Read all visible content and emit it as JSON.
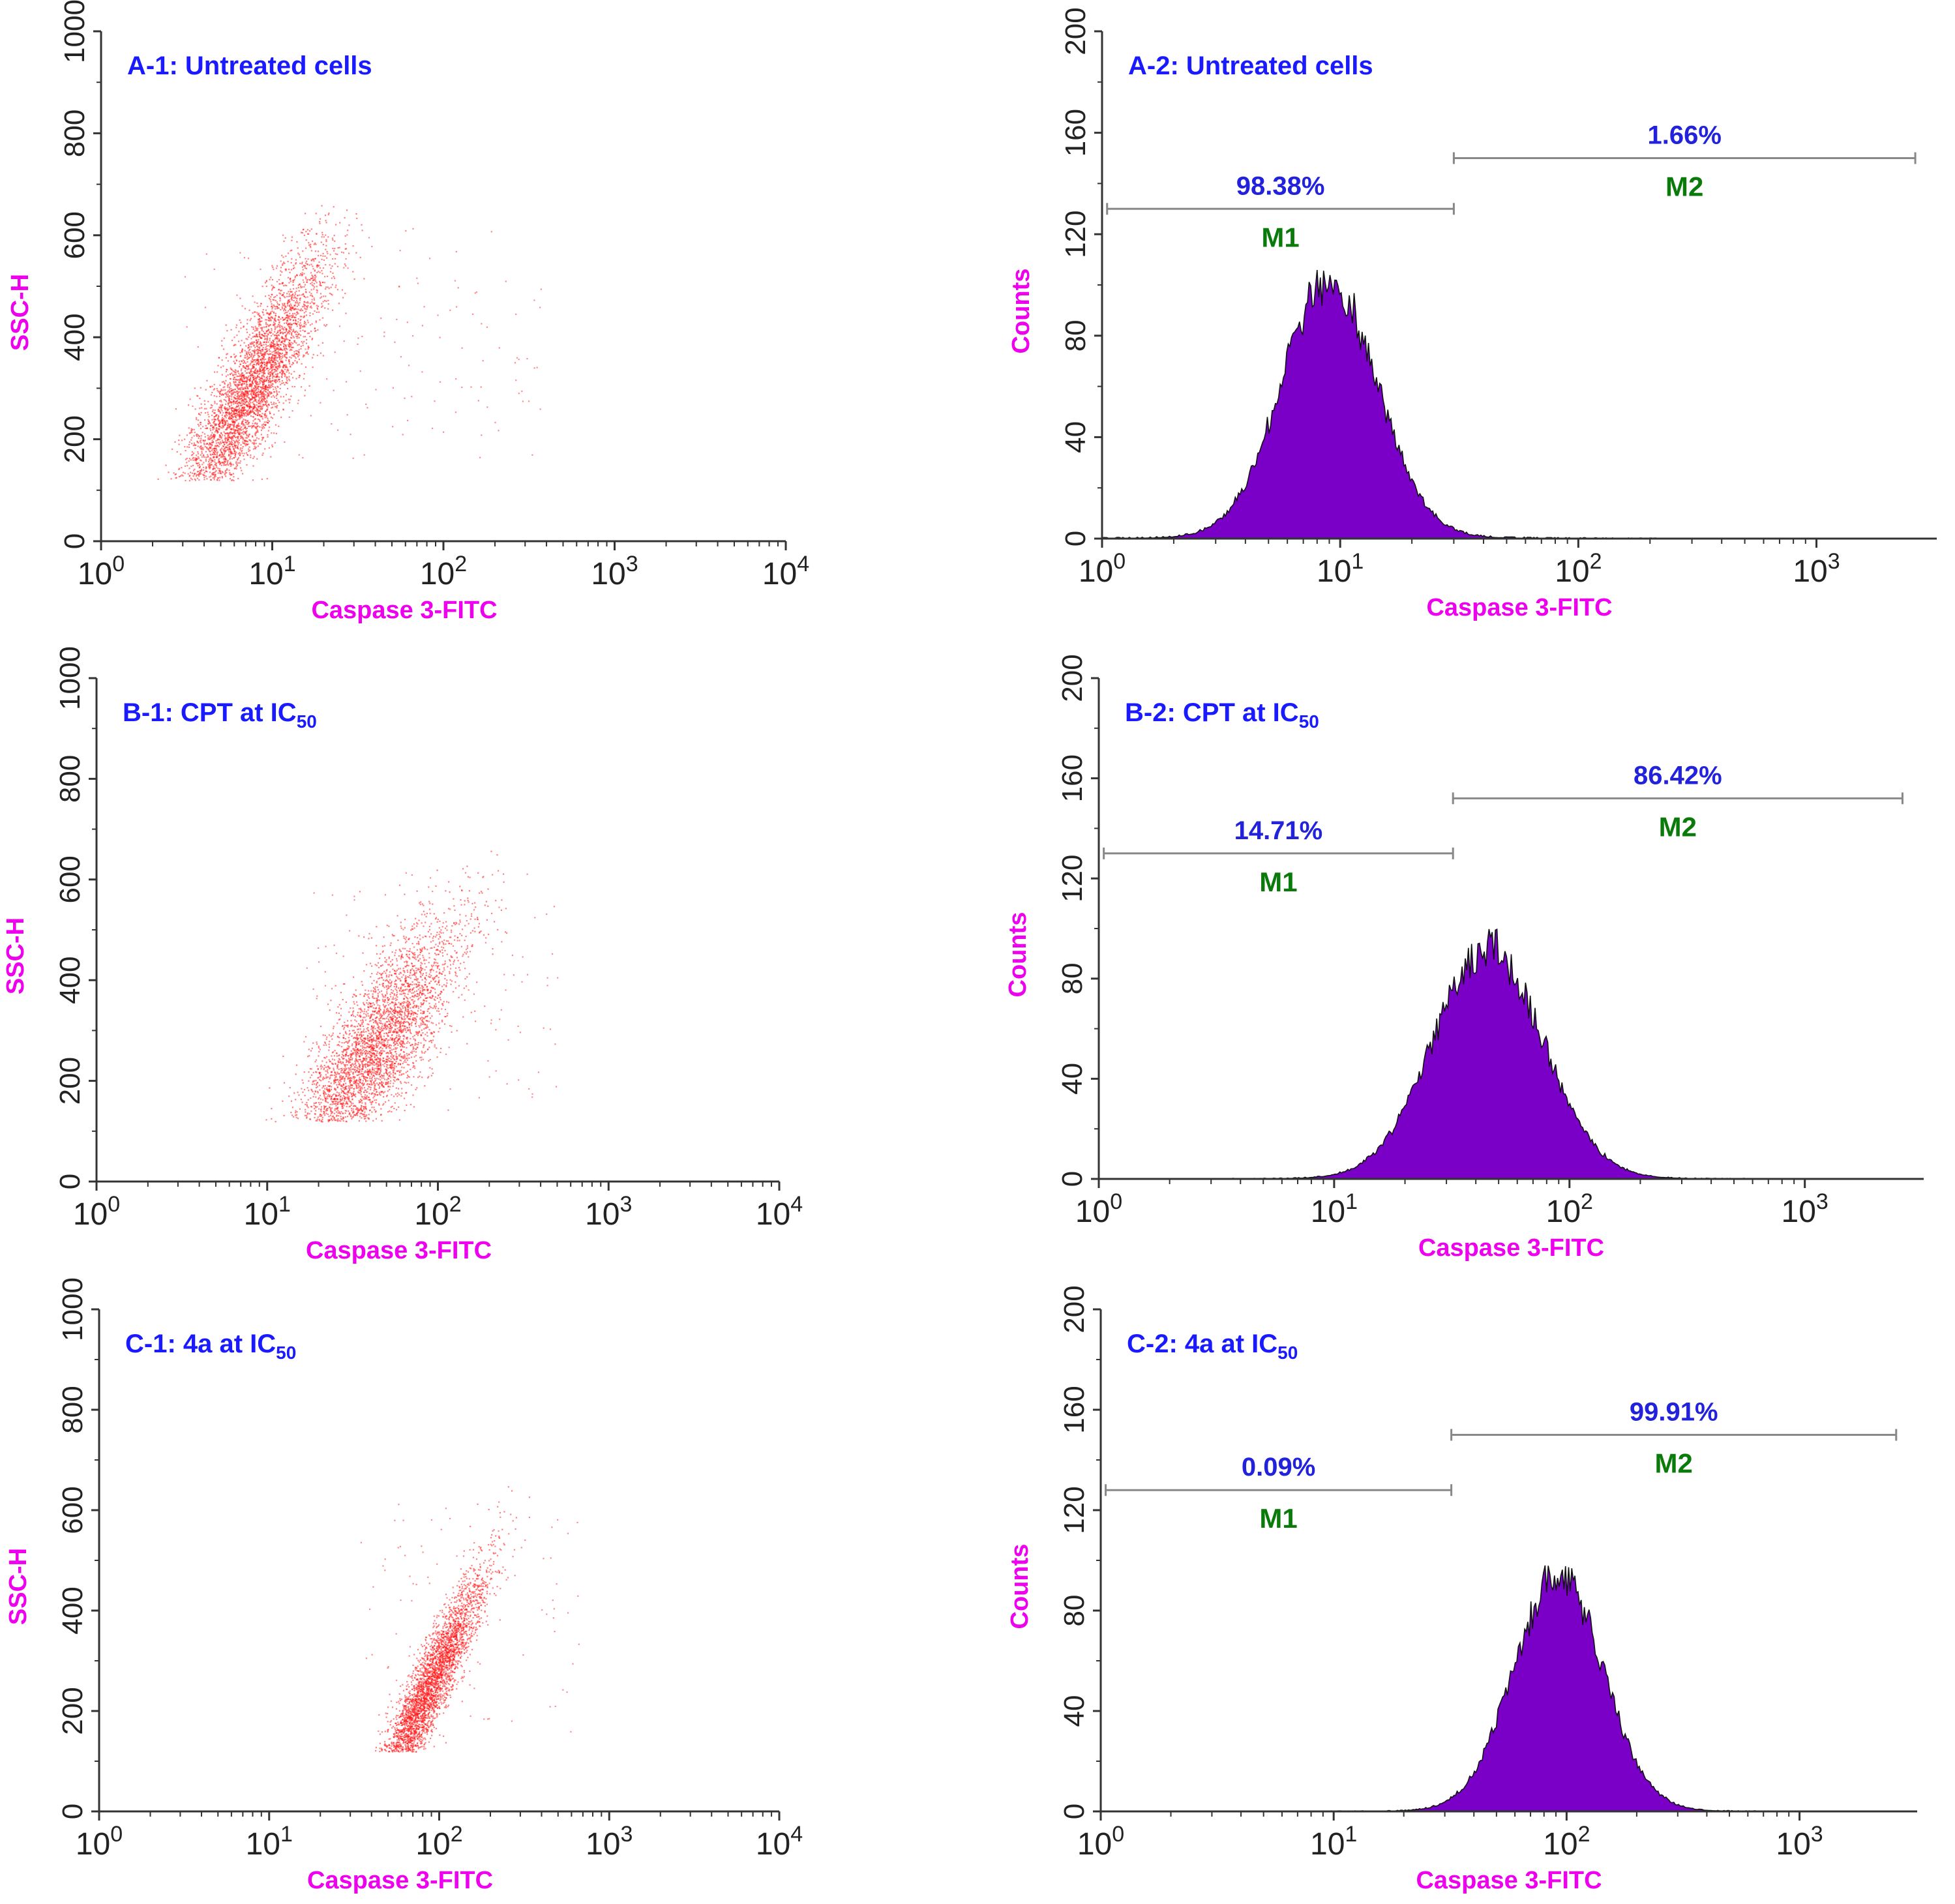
{
  "figure": {
    "background": "#ffffff"
  },
  "colors": {
    "title": "#1a1aff",
    "axis_label": "#ee00ee",
    "percent": "#2222dd",
    "marker_label": "#0a7a0a",
    "dot": "#ff1a1a",
    "histogram_fill": "#7a00c8",
    "histogram_edge": "#111111",
    "gate_line": "#888888",
    "axis": "#333333"
  },
  "chart_data": [
    {
      "id": "A-1",
      "type": "scatter",
      "title": "A-1: Untreated cells",
      "xlabel": "Caspase 3-FITC",
      "ylabel": "SSC-H",
      "xscale": "log",
      "xlim": [
        1,
        10000
      ],
      "ylim": [
        0,
        1000
      ],
      "xticks": [
        {
          "base": "10",
          "exp": "0"
        },
        {
          "base": "10",
          "exp": "1"
        },
        {
          "base": "10",
          "exp": "2"
        },
        {
          "base": "10",
          "exp": "3"
        },
        {
          "base": "10",
          "exp": "4"
        }
      ],
      "yticks": [
        "0",
        "200",
        "400",
        "600",
        "800",
        "1000"
      ],
      "population": {
        "center_x": 7.5,
        "center_y": 300,
        "spread_log10": 0.22,
        "slope_per_decade": 520,
        "y_spread": 65,
        "ymin": 120,
        "ymax": 660,
        "n": 4200,
        "sparse_n": 160,
        "sparse_xmax": 400
      }
    },
    {
      "id": "A-2",
      "type": "histogram",
      "title": "A-2: Untreated cells",
      "xlabel": "Caspase 3-FITC",
      "ylabel": "Counts",
      "xscale": "log",
      "xlim": [
        1,
        3200
      ],
      "ylim": [
        0,
        200
      ],
      "xticks": [
        {
          "base": "10",
          "exp": "0"
        },
        {
          "base": "10",
          "exp": "1"
        },
        {
          "base": "10",
          "exp": "2"
        },
        {
          "base": "10",
          "exp": "3"
        }
      ],
      "yticks": [
        "0",
        "40",
        "80",
        "120",
        "160",
        "200"
      ],
      "peak": {
        "center": 9,
        "sigma_log10": 0.2,
        "height": 100,
        "tail": 2
      },
      "markers": [
        {
          "name": "M1",
          "x_start": 1.05,
          "x_end": 30,
          "y": 130,
          "percent": "98.38%"
        },
        {
          "name": "M2",
          "x_start": 30,
          "x_end": 2600,
          "y": 150,
          "percent": "1.66%"
        }
      ]
    },
    {
      "id": "B-1",
      "type": "scatter",
      "title": "B-1: CPT at IC",
      "title_sub": "50",
      "xlabel": "Caspase 3-FITC",
      "ylabel": "SSC-H",
      "xscale": "log",
      "xlim": [
        1,
        10000
      ],
      "ylim": [
        0,
        1000
      ],
      "xticks": [
        {
          "base": "10",
          "exp": "0"
        },
        {
          "base": "10",
          "exp": "1"
        },
        {
          "base": "10",
          "exp": "2"
        },
        {
          "base": "10",
          "exp": "3"
        },
        {
          "base": "10",
          "exp": "4"
        }
      ],
      "yticks": [
        "0",
        "200",
        "400",
        "600",
        "800",
        "1000"
      ],
      "population": {
        "center_x": 40,
        "center_y": 250,
        "spread_log10": 0.26,
        "slope_per_decade": 420,
        "y_spread": 80,
        "ymin": 120,
        "ymax": 660,
        "n": 4200,
        "sparse_n": 120,
        "sparse_xmax": 500
      }
    },
    {
      "id": "B-2",
      "type": "histogram",
      "title": "B-2: CPT at IC",
      "title_sub": "50",
      "xlabel": "Caspase 3-FITC",
      "ylabel": "Counts",
      "xscale": "log",
      "xlim": [
        1,
        3200
      ],
      "ylim": [
        0,
        200
      ],
      "xticks": [
        {
          "base": "10",
          "exp": "0"
        },
        {
          "base": "10",
          "exp": "1"
        },
        {
          "base": "10",
          "exp": "2"
        },
        {
          "base": "10",
          "exp": "3"
        }
      ],
      "yticks": [
        "0",
        "40",
        "80",
        "120",
        "160",
        "200"
      ],
      "peak": {
        "center": 45,
        "sigma_log10": 0.23,
        "height": 92,
        "tail": 1
      },
      "markers": [
        {
          "name": "M1",
          "x_start": 1.05,
          "x_end": 32,
          "y": 130,
          "percent": "14.71%"
        },
        {
          "name": "M2",
          "x_start": 32,
          "x_end": 2600,
          "y": 152,
          "percent": "86.42%"
        }
      ]
    },
    {
      "id": "C-1",
      "type": "scatter",
      "title": "C-1: 4a at IC",
      "title_sub": "50",
      "xlabel": "Caspase 3-FITC",
      "ylabel": "SSC-H",
      "xscale": "log",
      "xlim": [
        1,
        10000
      ],
      "ylim": [
        0,
        1000
      ],
      "xticks": [
        {
          "base": "10",
          "exp": "0"
        },
        {
          "base": "10",
          "exp": "1"
        },
        {
          "base": "10",
          "exp": "2"
        },
        {
          "base": "10",
          "exp": "3"
        },
        {
          "base": "10",
          "exp": "4"
        }
      ],
      "yticks": [
        "0",
        "200",
        "400",
        "600",
        "800",
        "1000"
      ],
      "population": {
        "center_x": 85,
        "center_y": 240,
        "spread_log10": 0.17,
        "slope_per_decade": 650,
        "y_spread": 45,
        "ymin": 120,
        "ymax": 660,
        "n": 4000,
        "sparse_n": 100,
        "sparse_xmax": 700
      }
    },
    {
      "id": "C-2",
      "type": "histogram",
      "title": "C-2: 4a at IC",
      "title_sub": "50",
      "xlabel": "Caspase 3-FITC",
      "ylabel": "Counts",
      "xscale": "log",
      "xlim": [
        1,
        3200
      ],
      "ylim": [
        0,
        200
      ],
      "xticks": [
        {
          "base": "10",
          "exp": "0"
        },
        {
          "base": "10",
          "exp": "1"
        },
        {
          "base": "10",
          "exp": "2"
        },
        {
          "base": "10",
          "exp": "3"
        }
      ],
      "yticks": [
        "0",
        "40",
        "80",
        "120",
        "160",
        "200"
      ],
      "peak": {
        "center": 92,
        "sigma_log10": 0.19,
        "height": 94,
        "tail": 1
      },
      "markers": [
        {
          "name": "M1",
          "x_start": 1.05,
          "x_end": 32,
          "y": 128,
          "percent": "0.09%"
        },
        {
          "name": "M2",
          "x_start": 32,
          "x_end": 2600,
          "y": 150,
          "percent": "99.91%"
        }
      ]
    }
  ]
}
